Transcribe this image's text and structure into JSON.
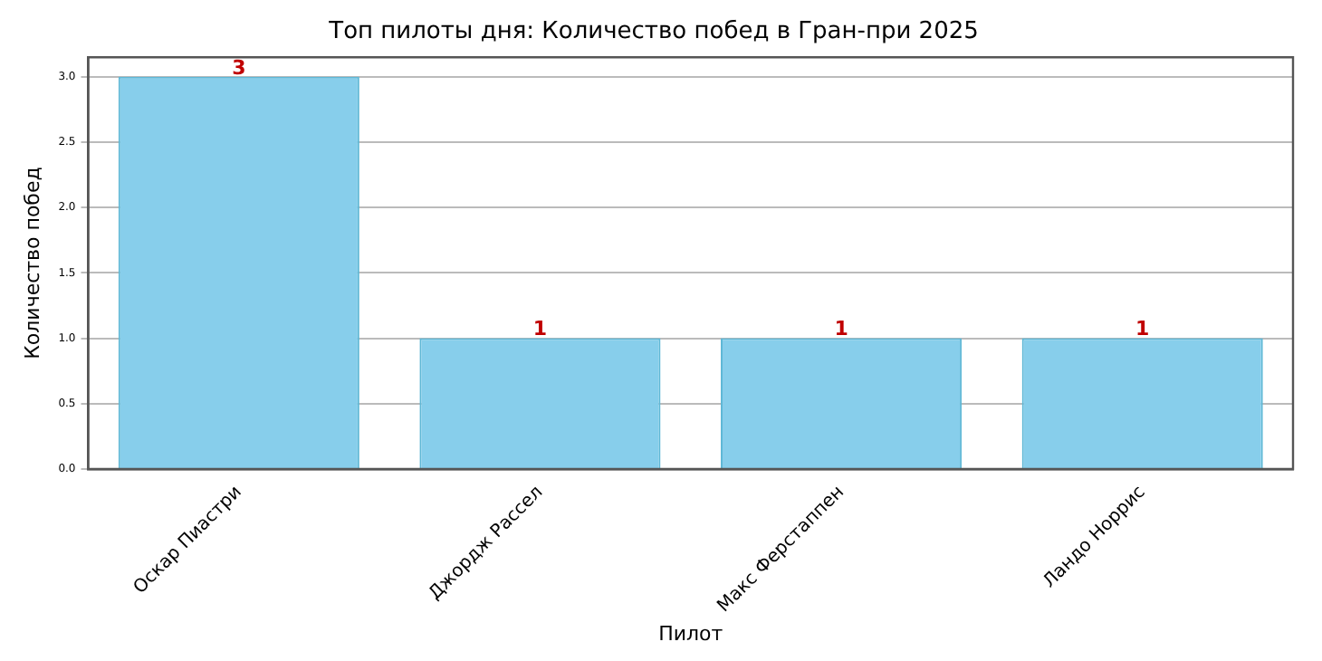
{
  "chart_data": {
    "type": "bar",
    "title": "Топ пилоты дня: Количество побед в Гран-при 2025",
    "xlabel": "Пилот",
    "ylabel": "Количество побед",
    "categories": [
      "Оскар Пиастри",
      "Джордж Рассел",
      "Макс Ферстаппен",
      "Ландо Норрис"
    ],
    "values": [
      3,
      1,
      1,
      1
    ],
    "color": "#87ceeb",
    "ylim": [
      0,
      3.15
    ],
    "yticks": [
      {
        "value": 0,
        "label": "0.0"
      },
      {
        "value": 0.5,
        "label": "0.5"
      },
      {
        "value": 1,
        "label": "1.0"
      },
      {
        "value": 1.5,
        "label": "1.5"
      },
      {
        "value": 2,
        "label": "2.0"
      },
      {
        "value": 2.5,
        "label": "2.5"
      },
      {
        "value": 3,
        "label": "3.0"
      }
    ],
    "grid": "y",
    "data_labels": true
  }
}
